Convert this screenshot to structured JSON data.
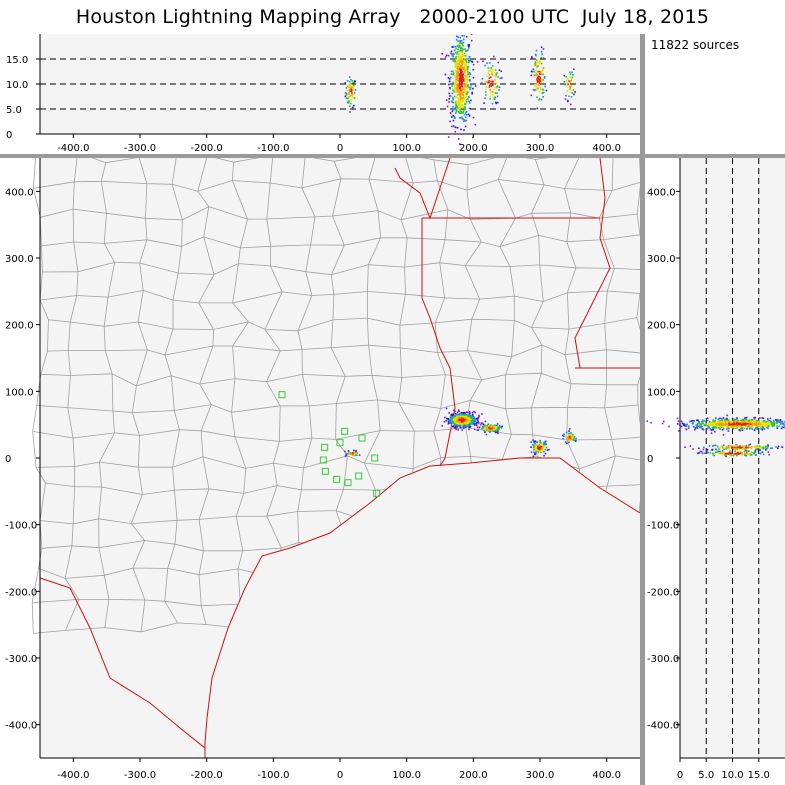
{
  "title": "Houston Lightning Mapping Array   2000-2100 UTC  July 18, 2015",
  "source_count": "11822 sources",
  "colors": {
    "border": "#9a9a9a",
    "plot_bg": "#f4f4f4",
    "county_lines": "#a0a0a0",
    "state_lines": "#d01010",
    "coastline": "#d01010",
    "stations": "#33cc33"
  },
  "chart_data": [
    {
      "name": "altitude-vs-east-west",
      "type": "scatter",
      "xlim": [
        -450,
        450
      ],
      "ylim": [
        0,
        20
      ],
      "x_ticks": [
        "-400.0",
        "-300.0",
        "-200.0",
        "-100.0",
        "0",
        "100.0",
        "200.0",
        "300.0",
        "400.0"
      ],
      "x_tick_values": [
        -400,
        -300,
        -200,
        -100,
        0,
        100,
        200,
        300,
        400
      ],
      "y_ticks": [
        "0",
        "5.0",
        "10.0",
        "15.0"
      ],
      "y_tick_values": [
        0,
        5,
        10,
        15
      ],
      "reference_lines": [
        5,
        10,
        15
      ],
      "clusters": [
        {
          "x": 15,
          "y": 8.5,
          "sx": 4,
          "sy": 1.5,
          "n": 70
        },
        {
          "x": 180,
          "y": 11,
          "sx": 8,
          "sy": 4.5,
          "n": 650
        },
        {
          "x": 225,
          "y": 10.5,
          "sx": 7,
          "sy": 2.2,
          "n": 90
        },
        {
          "x": 297,
          "y": 11.5,
          "sx": 5,
          "sy": 2.8,
          "n": 110
        },
        {
          "x": 343,
          "y": 10,
          "sx": 4,
          "sy": 1.5,
          "n": 40
        }
      ]
    },
    {
      "name": "plan-view",
      "type": "scatter",
      "xlim": [
        -450,
        450
      ],
      "ylim": [
        -450,
        450
      ],
      "x_ticks": [
        "-400.0",
        "-300.0",
        "-200.0",
        "-100.0",
        "0",
        "100.0",
        "200.0",
        "300.0",
        "400.0"
      ],
      "x_tick_values": [
        -400,
        -300,
        -200,
        -100,
        0,
        100,
        200,
        300,
        400
      ],
      "y_ticks": [
        "400.0",
        "300.0",
        "200.0",
        "100.0",
        "0",
        "-100.0",
        "-200.0",
        "-300.0",
        "-400.0"
      ],
      "y_tick_values": [
        400,
        300,
        200,
        100,
        0,
        -100,
        -200,
        -300,
        -400
      ],
      "clusters": [
        {
          "x": 182,
          "y": 58,
          "sx": 10,
          "sy": 5,
          "n": 600
        },
        {
          "x": 225,
          "y": 46,
          "sx": 8,
          "sy": 3,
          "n": 150
        },
        {
          "x": 298,
          "y": 17,
          "sx": 6,
          "sy": 5,
          "n": 110
        },
        {
          "x": 343,
          "y": 32,
          "sx": 5,
          "sy": 4,
          "n": 50
        },
        {
          "x": 17,
          "y": 8,
          "sx": 5,
          "sy": 2,
          "n": 40
        }
      ],
      "stations": [
        {
          "x": -87,
          "y": 95
        },
        {
          "x": 7,
          "y": 40
        },
        {
          "x": 33,
          "y": 30
        },
        {
          "x": 0,
          "y": 23
        },
        {
          "x": -23,
          "y": 16
        },
        {
          "x": -25,
          "y": -3
        },
        {
          "x": 52,
          "y": 0
        },
        {
          "x": -22,
          "y": -20
        },
        {
          "x": 28,
          "y": -27
        },
        {
          "x": -5,
          "y": -32
        },
        {
          "x": 12,
          "y": -37
        },
        {
          "x": 55,
          "y": -53
        }
      ]
    },
    {
      "name": "north-south-vs-altitude",
      "type": "scatter",
      "xlim": [
        0,
        20
      ],
      "ylim": [
        -450,
        450
      ],
      "x_ticks": [
        "0",
        "5.0",
        "10.0",
        "15.0"
      ],
      "x_tick_values": [
        0,
        5,
        10,
        15
      ],
      "y_ticks": [
        "400.0",
        "300.0",
        "200.0",
        "100.0",
        "0",
        "-100.0",
        "-200.0",
        "-300.0",
        "-400.0"
      ],
      "y_tick_values": [
        400,
        300,
        200,
        100,
        0,
        -100,
        -200,
        -300,
        -400
      ],
      "reference_lines": [
        5,
        10,
        15
      ],
      "clusters": [
        {
          "x": 11,
          "y": 52,
          "sx": 5,
          "sy": 4,
          "n": 700
        },
        {
          "x": 11,
          "y": 17,
          "sx": 3.5,
          "sy": 2,
          "n": 150
        },
        {
          "x": 10,
          "y": 8,
          "sx": 3,
          "sy": 2,
          "n": 120
        }
      ]
    }
  ]
}
